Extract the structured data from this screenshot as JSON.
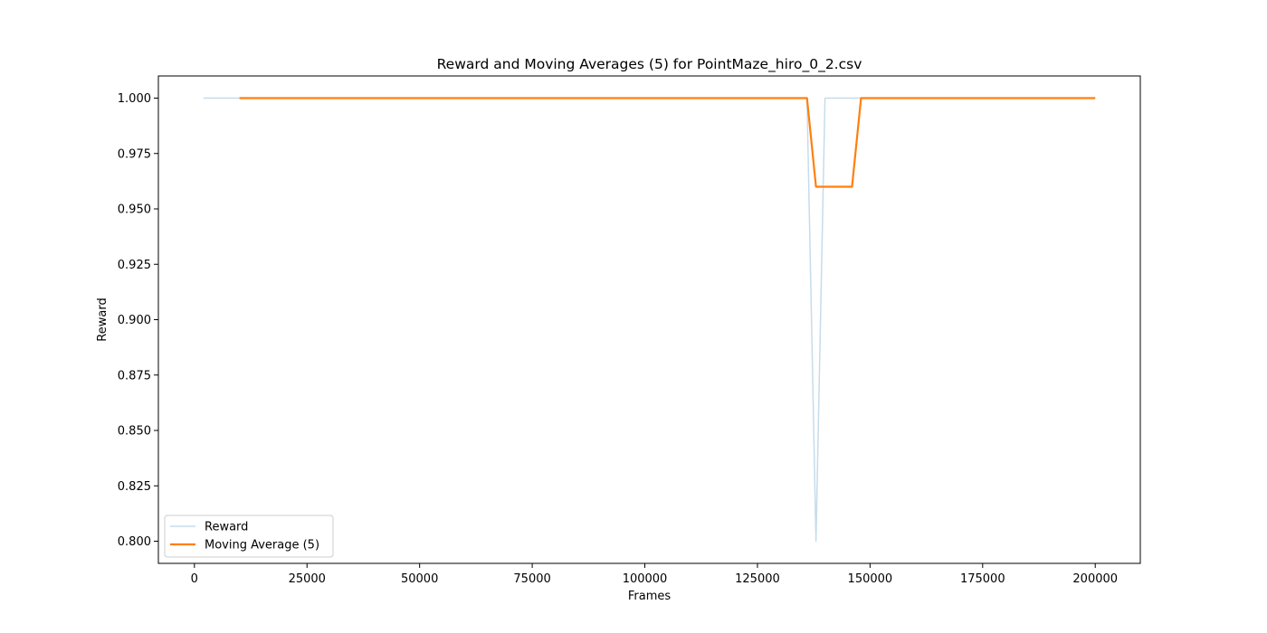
{
  "chart_data": {
    "type": "line",
    "title": "Reward and Moving Averages (5) for PointMaze_hiro_0_2.csv",
    "xlabel": "Frames",
    "ylabel": "Reward",
    "xlim": [
      -8000,
      210000
    ],
    "ylim": [
      0.79,
      1.01
    ],
    "xticks": [
      0,
      25000,
      50000,
      75000,
      100000,
      125000,
      150000,
      175000,
      200000
    ],
    "xtick_labels": [
      "0",
      "25000",
      "50000",
      "75000",
      "100000",
      "125000",
      "150000",
      "175000",
      "200000"
    ],
    "yticks": [
      0.8,
      0.825,
      0.85,
      0.875,
      0.9,
      0.925,
      0.95,
      0.975,
      1.0
    ],
    "ytick_labels": [
      "0.800",
      "0.825",
      "0.850",
      "0.875",
      "0.900",
      "0.925",
      "0.950",
      "0.975",
      "1.000"
    ],
    "legend_position": "lower-left",
    "series": [
      {
        "name": "Reward",
        "color": "#c6dcec",
        "x": [
          2000,
          10000,
          50000,
          100000,
          136000,
          138000,
          140000,
          142000,
          200000
        ],
        "y": [
          1.0,
          1.0,
          1.0,
          1.0,
          1.0,
          0.8,
          1.0,
          1.0,
          1.0
        ]
      },
      {
        "name": "Moving Average (5)",
        "color": "#ff7f0e",
        "x": [
          10000,
          50000,
          100000,
          136000,
          138000,
          140000,
          142000,
          144000,
          146000,
          148000,
          200000
        ],
        "y": [
          1.0,
          1.0,
          1.0,
          1.0,
          0.96,
          0.96,
          0.96,
          0.96,
          0.96,
          1.0,
          1.0
        ]
      }
    ]
  }
}
